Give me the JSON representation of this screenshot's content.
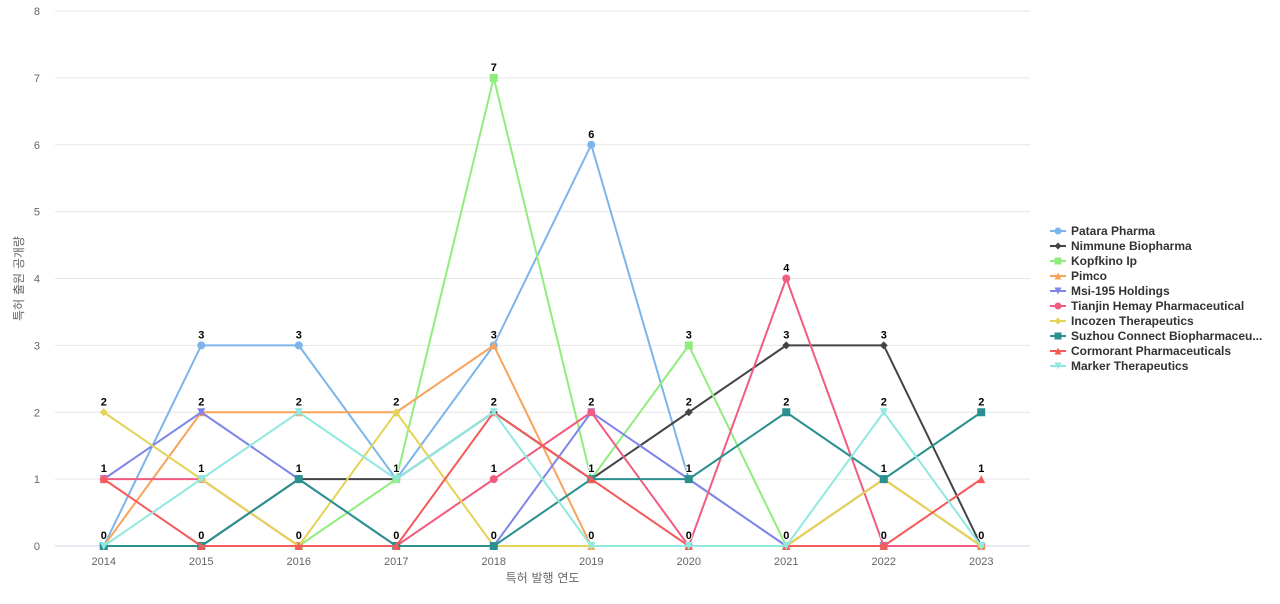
{
  "chart_data": {
    "type": "line",
    "categories": [
      "2014",
      "2015",
      "2016",
      "2017",
      "2018",
      "2019",
      "2020",
      "2021",
      "2022",
      "2023"
    ],
    "xlabel": "특허 발행 연도",
    "ylabel": "특허 출원 공개량",
    "ylim": [
      0,
      8
    ],
    "yticks": [
      0,
      1,
      2,
      3,
      4,
      5,
      6,
      7,
      8
    ],
    "grid": true,
    "legend_position": "right",
    "series": [
      {
        "name": "Patara Pharma",
        "color": "#7cb5ec",
        "marker": "circle",
        "values": [
          0,
          3,
          3,
          1,
          3,
          6,
          1,
          0,
          1,
          0
        ]
      },
      {
        "name": "Nimmune Biopharma",
        "color": "#434348",
        "marker": "diamond",
        "values": [
          0,
          0,
          1,
          1,
          2,
          1,
          2,
          3,
          3,
          0
        ]
      },
      {
        "name": "Kopfkino Ip",
        "color": "#90ed7d",
        "marker": "square",
        "values": [
          0,
          0,
          0,
          1,
          7,
          1,
          3,
          0,
          0,
          0
        ]
      },
      {
        "name": "Pimco",
        "color": "#f7a35c",
        "marker": "triangle",
        "values": [
          0,
          2,
          2,
          2,
          3,
          0,
          0,
          0,
          1,
          0
        ]
      },
      {
        "name": "Msi-195 Holdings",
        "color": "#8085e9",
        "marker": "triangle-down",
        "values": [
          1,
          2,
          1,
          0,
          0,
          2,
          1,
          0,
          0,
          0
        ]
      },
      {
        "name": "Tianjin Hemay Pharmaceutical",
        "color": "#f15c80",
        "marker": "circle",
        "values": [
          1,
          1,
          0,
          0,
          1,
          2,
          0,
          4,
          0,
          0
        ]
      },
      {
        "name": "Incozen Therapeutics",
        "color": "#e4d354",
        "marker": "diamond",
        "values": [
          2,
          1,
          0,
          2,
          0,
          0,
          0,
          0,
          1,
          0
        ]
      },
      {
        "name": "Suzhou Connect Biopharmaceu...",
        "color": "#2b908f",
        "marker": "square",
        "values": [
          0,
          0,
          1,
          0,
          0,
          1,
          1,
          2,
          1,
          2
        ]
      },
      {
        "name": "Cormorant Pharmaceuticals",
        "color": "#f45b5b",
        "marker": "triangle",
        "values": [
          1,
          0,
          0,
          0,
          2,
          1,
          0,
          0,
          0,
          1
        ]
      },
      {
        "name": "Marker Therapeutics",
        "color": "#91e8e1",
        "marker": "triangle-down",
        "values": [
          0,
          1,
          2,
          1,
          2,
          0,
          0,
          0,
          2,
          0
        ]
      }
    ],
    "data_labels": [
      {
        "category": "2014",
        "labels": [
          "2",
          "1",
          "0"
        ]
      },
      {
        "category": "2015",
        "labels": [
          "3",
          "2",
          "1",
          "0"
        ]
      },
      {
        "category": "2016",
        "labels": [
          "3",
          "2",
          "1",
          "0"
        ]
      },
      {
        "category": "2017",
        "labels": [
          "2",
          "1",
          "0"
        ]
      },
      {
        "category": "2018",
        "labels": [
          "7",
          "3",
          "2",
          "1",
          "0"
        ]
      },
      {
        "category": "2019",
        "labels": [
          "6",
          "2",
          "1",
          "0"
        ]
      },
      {
        "category": "2020",
        "labels": [
          "3",
          "2",
          "1",
          "0"
        ]
      },
      {
        "category": "2021",
        "labels": [
          "4",
          "3",
          "2",
          "0"
        ]
      },
      {
        "category": "2022",
        "labels": [
          "3",
          "2",
          "1",
          "0"
        ]
      },
      {
        "category": "2023",
        "labels": [
          "2",
          "1",
          "0"
        ]
      }
    ]
  }
}
